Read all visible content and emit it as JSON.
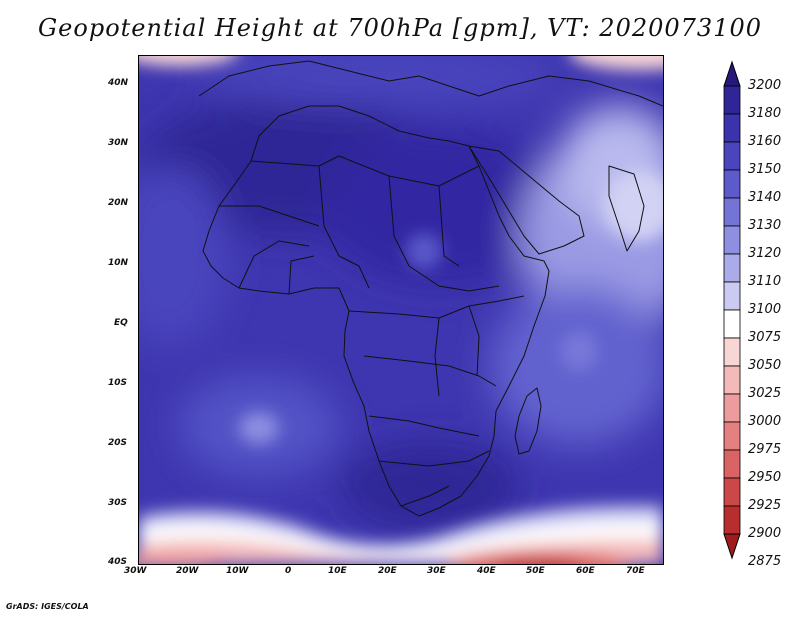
{
  "title": "Geopotential Height at 700hPa [gpm], VT: 2020073100",
  "footer": "GrADS: IGES/COLA",
  "y_ticks": [
    "40N",
    "30N",
    "20N",
    "10N",
    "EQ",
    "10S",
    "20S",
    "30S",
    "40S"
  ],
  "x_ticks": [
    "30W",
    "20W",
    "10W",
    "0",
    "10E",
    "20E",
    "30E",
    "40E",
    "50E",
    "60E",
    "70E"
  ],
  "colorbar": {
    "levels": [
      "3200",
      "3180",
      "3160",
      "3150",
      "3140",
      "3130",
      "3120",
      "3110",
      "3100",
      "3075",
      "3050",
      "3025",
      "3000",
      "2975",
      "2950",
      "2925",
      "2900",
      "2875"
    ],
    "colors": [
      "#27197a",
      "#2f2596",
      "#3b33ac",
      "#4a45bd",
      "#5d5bcb",
      "#7474d7",
      "#8e8fe1",
      "#ababea",
      "#cacaf2",
      "#ffffff",
      "#f8d6d6",
      "#f4b9b9",
      "#ec9c9c",
      "#e48080",
      "#da6464",
      "#cc4848",
      "#b82e2e",
      "#a01c1c"
    ]
  }
}
